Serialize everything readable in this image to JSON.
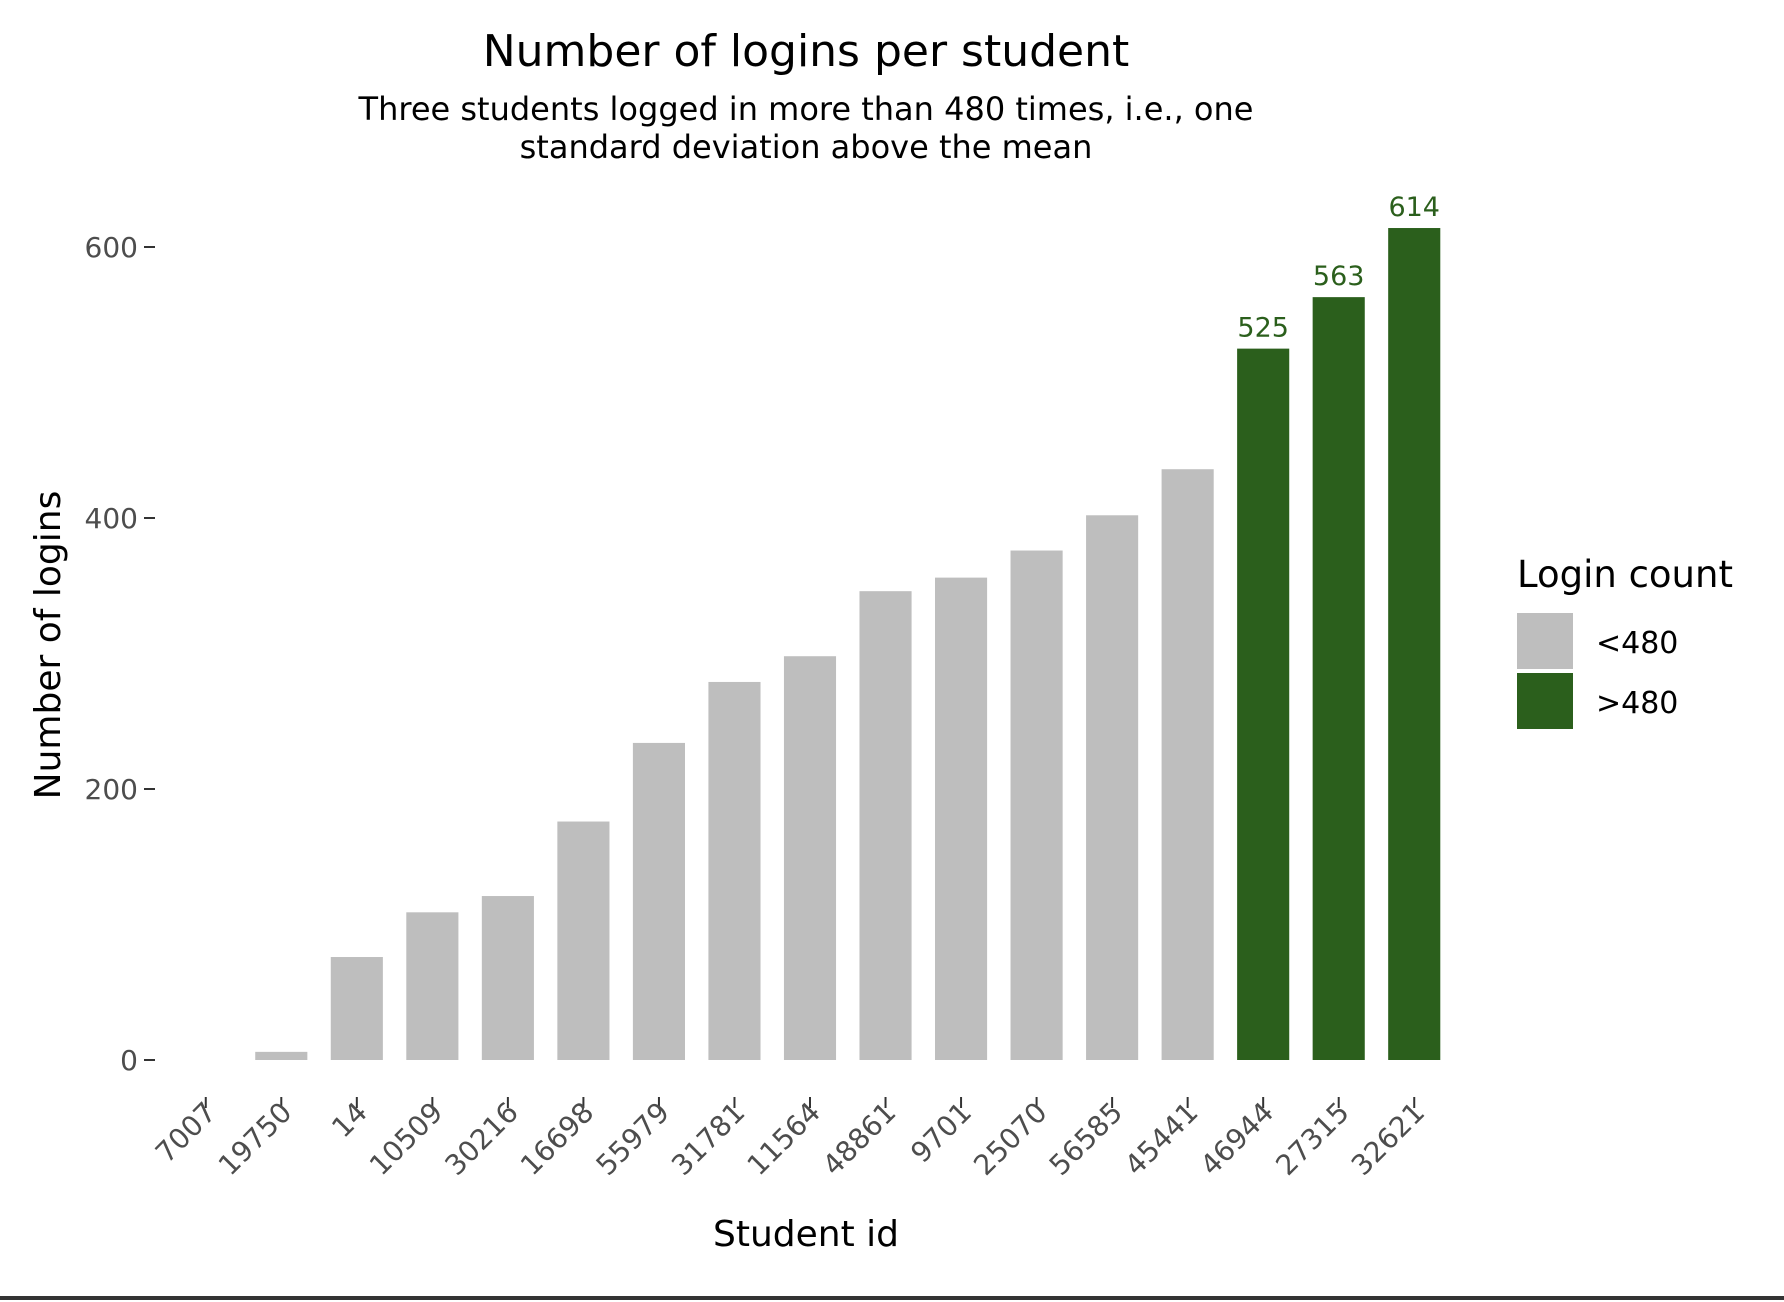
{
  "chart_data": {
    "type": "bar",
    "title": "Number of logins per student",
    "subtitle_lines": [
      "Three students logged in more than 480 times, i.e., one",
      "standard deviation above the mean"
    ],
    "xlabel": "Student id",
    "ylabel": "Number of logins",
    "categories": [
      "7007",
      "19750",
      "14",
      "10509",
      "30216",
      "16698",
      "55979",
      "31781",
      "11564",
      "48861",
      "9701",
      "25070",
      "56585",
      "45441",
      "46944",
      "27315",
      "32621"
    ],
    "values": [
      0,
      6,
      76,
      109,
      121,
      176,
      234,
      279,
      298,
      346,
      356,
      376,
      402,
      436,
      525,
      563,
      614
    ],
    "groups": [
      "<480",
      "<480",
      "<480",
      "<480",
      "<480",
      "<480",
      "<480",
      "<480",
      "<480",
      "<480",
      "<480",
      "<480",
      "<480",
      "<480",
      ">480",
      ">480",
      ">480"
    ],
    "data_labels": [
      "",
      "",
      "",
      "",
      "",
      "",
      "",
      "",
      "",
      "",
      "",
      "",
      "",
      "",
      "525",
      "563",
      "614"
    ],
    "ylim": [
      0,
      640
    ],
    "yticks": [
      0,
      200,
      400,
      600
    ],
    "grid": false,
    "legend": {
      "title": "Login count",
      "placement": "right",
      "entries": [
        {
          "label": "<480",
          "color": "#bebebe"
        },
        {
          "label": ">480",
          "color": "#2b5f1c"
        }
      ]
    },
    "colors": {
      "<480": "#bebebe",
      ">480": "#2b5f1c"
    }
  }
}
